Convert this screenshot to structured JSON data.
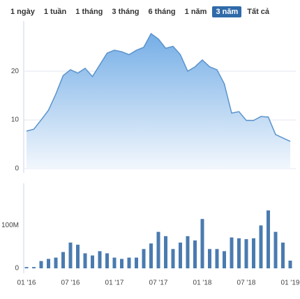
{
  "range_buttons": [
    "1 ngày",
    "1 tuần",
    "1 tháng",
    "3 tháng",
    "6 tháng",
    "1 năm",
    "3 năm",
    "Tất cả"
  ],
  "selected_range": "3 năm",
  "chart_data": [
    {
      "type": "area",
      "color": "#5b93cc",
      "categories": [
        "01 '16",
        null,
        null,
        null,
        null,
        null,
        "07 '16",
        null,
        null,
        null,
        null,
        null,
        "01 '17",
        null,
        null,
        null,
        null,
        null,
        "07 '17",
        null,
        null,
        null,
        null,
        null,
        "01 '18",
        null,
        null,
        null,
        null,
        null,
        "07 '18",
        null,
        null,
        null,
        null,
        null,
        "01 '19"
      ],
      "values": [
        7.7,
        8.1,
        10,
        12,
        15.3,
        19.1,
        20.3,
        19.6,
        20.6,
        18.9,
        21.3,
        23.7,
        24.3,
        24,
        23.4,
        24.3,
        24.9,
        27.7,
        26.6,
        24.7,
        25.1,
        23.4,
        20,
        20.9,
        22.3,
        20.9,
        20.3,
        17.4,
        11.4,
        11.7,
        9.9,
        9.9,
        10.7,
        10.6,
        7,
        6.3,
        5.6
      ],
      "ylim": [
        0,
        29.6
      ],
      "yticks": [
        0,
        10,
        20
      ],
      "grid": true
    },
    {
      "type": "bar",
      "color": "#4a7bb0",
      "values": [
        3000000,
        3000000,
        17000000,
        22000000,
        25000000,
        38000000,
        60000000,
        55000000,
        35000000,
        30000000,
        40000000,
        35000000,
        25000000,
        22000000,
        25000000,
        25000000,
        45000000,
        58000000,
        85000000,
        75000000,
        45000000,
        60000000,
        75000000,
        65000000,
        115000000,
        45000000,
        45000000,
        40000000,
        72000000,
        70000000,
        68000000,
        70000000,
        100000000,
        135000000,
        85000000,
        60000000,
        18000000
      ],
      "ylim": [
        0,
        190000000
      ],
      "yticks": [
        0,
        {
          "value": 100000000,
          "label": "100M"
        }
      ]
    }
  ]
}
